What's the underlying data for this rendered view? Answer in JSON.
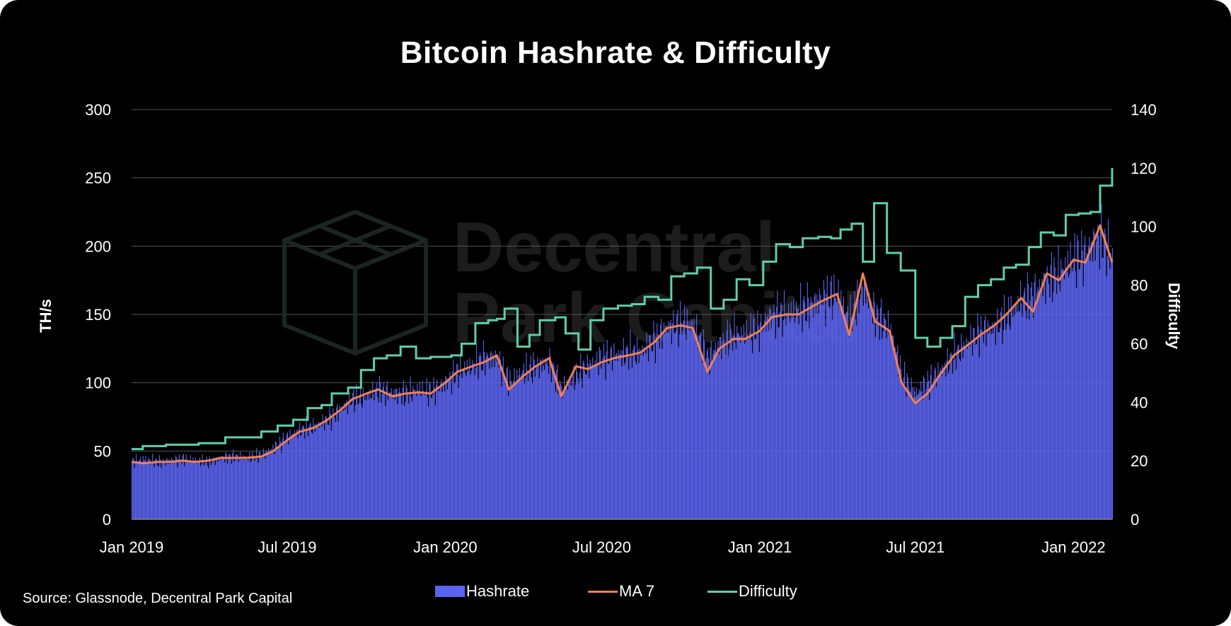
{
  "title": "Bitcoin Hashrate & Difficulty",
  "source": "Source: Glassnode, Decentral Park Capital",
  "watermark": {
    "line1": "Decentral",
    "line2": "Park Capital"
  },
  "colors": {
    "background": "#000000",
    "hashrate": "#5b64f0",
    "ma7": "#f07f55",
    "difficulty": "#5fcfa8",
    "grid": "#555555",
    "text": "#ffffff"
  },
  "legend": [
    {
      "label": "Hashrate",
      "kind": "bar",
      "color": "#5b64f0"
    },
    {
      "label": "MA 7",
      "kind": "line",
      "color": "#f07f55"
    },
    {
      "label": "Difficulty",
      "kind": "line",
      "color": "#5fcfa8"
    }
  ],
  "chart_data": {
    "type": "bar",
    "title": "Bitcoin Hashrate & Difficulty",
    "ylabel": "TH/s",
    "y2label": "Difficulty",
    "ylim": [
      0,
      300
    ],
    "y2lim": [
      0,
      140
    ],
    "yticks": [
      "300",
      "250",
      "200",
      "150",
      "100",
      "50",
      "0"
    ],
    "y2ticks": [
      "140",
      "120",
      "100",
      "80",
      "60",
      "40",
      "20",
      "0"
    ],
    "xlim": [
      "2019-01-01",
      "2022-02-15"
    ],
    "xticks": [
      {
        "date": "2019-01-01",
        "label": "Jan 2019"
      },
      {
        "date": "2019-07-01",
        "label": "Jul 2019"
      },
      {
        "date": "2020-01-01",
        "label": "Jan 2020"
      },
      {
        "date": "2020-07-01",
        "label": "Jul 2020"
      },
      {
        "date": "2021-01-01",
        "label": "Jan 2021"
      },
      {
        "date": "2021-07-01",
        "label": "Jul 2021"
      },
      {
        "date": "2022-01-01",
        "label": "Jan 2022"
      }
    ],
    "grid": true,
    "legend_position": "bottom",
    "series": [
      {
        "name": "Hashrate",
        "type": "bar",
        "axis": "left",
        "points": [
          [
            "2019-01-01",
            42
          ],
          [
            "2019-01-15",
            44
          ],
          [
            "2019-02-01",
            42
          ],
          [
            "2019-02-15",
            43
          ],
          [
            "2019-03-01",
            44
          ],
          [
            "2019-03-15",
            43
          ],
          [
            "2019-04-01",
            42
          ],
          [
            "2019-04-15",
            45
          ],
          [
            "2019-05-01",
            46
          ],
          [
            "2019-05-15",
            45
          ],
          [
            "2019-06-01",
            47
          ],
          [
            "2019-06-15",
            52
          ],
          [
            "2019-07-01",
            60
          ],
          [
            "2019-07-15",
            65
          ],
          [
            "2019-08-01",
            68
          ],
          [
            "2019-08-15",
            72
          ],
          [
            "2019-09-01",
            80
          ],
          [
            "2019-09-15",
            88
          ],
          [
            "2019-10-01",
            90
          ],
          [
            "2019-10-15",
            95
          ],
          [
            "2019-11-01",
            92
          ],
          [
            "2019-11-15",
            92
          ],
          [
            "2019-12-01",
            95
          ],
          [
            "2019-12-15",
            93
          ],
          [
            "2020-01-01",
            100
          ],
          [
            "2020-01-15",
            108
          ],
          [
            "2020-02-01",
            112
          ],
          [
            "2020-02-15",
            118
          ],
          [
            "2020-03-01",
            118
          ],
          [
            "2020-03-15",
            100
          ],
          [
            "2020-04-01",
            108
          ],
          [
            "2020-04-15",
            112
          ],
          [
            "2020-05-01",
            115
          ],
          [
            "2020-05-15",
            95
          ],
          [
            "2020-06-01",
            105
          ],
          [
            "2020-06-15",
            112
          ],
          [
            "2020-07-01",
            118
          ],
          [
            "2020-07-15",
            120
          ],
          [
            "2020-08-01",
            122
          ],
          [
            "2020-08-15",
            122
          ],
          [
            "2020-09-01",
            132
          ],
          [
            "2020-09-15",
            140
          ],
          [
            "2020-10-01",
            143
          ],
          [
            "2020-10-15",
            143
          ],
          [
            "2020-11-01",
            118
          ],
          [
            "2020-11-15",
            128
          ],
          [
            "2020-12-01",
            135
          ],
          [
            "2020-12-15",
            135
          ],
          [
            "2021-01-01",
            140
          ],
          [
            "2021-01-15",
            150
          ],
          [
            "2021-02-01",
            150
          ],
          [
            "2021-02-15",
            153
          ],
          [
            "2021-03-01",
            157
          ],
          [
            "2021-03-15",
            162
          ],
          [
            "2021-04-01",
            165
          ],
          [
            "2021-04-15",
            145
          ],
          [
            "2021-05-01",
            170
          ],
          [
            "2021-05-15",
            150
          ],
          [
            "2021-06-01",
            140
          ],
          [
            "2021-06-15",
            105
          ],
          [
            "2021-07-01",
            92
          ],
          [
            "2021-07-15",
            100
          ],
          [
            "2021-08-01",
            110
          ],
          [
            "2021-08-15",
            120
          ],
          [
            "2021-09-01",
            130
          ],
          [
            "2021-09-15",
            138
          ],
          [
            "2021-10-01",
            140
          ],
          [
            "2021-10-15",
            148
          ],
          [
            "2021-11-01",
            160
          ],
          [
            "2021-11-15",
            165
          ],
          [
            "2021-12-01",
            175
          ],
          [
            "2021-12-15",
            180
          ],
          [
            "2022-01-01",
            190
          ],
          [
            "2022-01-15",
            195
          ],
          [
            "2022-02-01",
            208
          ],
          [
            "2022-02-15",
            190
          ]
        ]
      },
      {
        "name": "MA 7",
        "type": "line",
        "axis": "left",
        "points": [
          [
            "2019-01-01",
            42
          ],
          [
            "2019-01-15",
            41
          ],
          [
            "2019-02-01",
            42
          ],
          [
            "2019-02-15",
            42
          ],
          [
            "2019-03-01",
            43
          ],
          [
            "2019-03-15",
            42
          ],
          [
            "2019-04-01",
            43
          ],
          [
            "2019-04-15",
            45
          ],
          [
            "2019-05-01",
            45
          ],
          [
            "2019-05-15",
            45
          ],
          [
            "2019-06-01",
            46
          ],
          [
            "2019-06-15",
            50
          ],
          [
            "2019-07-01",
            58
          ],
          [
            "2019-07-15",
            64
          ],
          [
            "2019-08-01",
            67
          ],
          [
            "2019-08-15",
            72
          ],
          [
            "2019-09-01",
            80
          ],
          [
            "2019-09-15",
            88
          ],
          [
            "2019-10-01",
            92
          ],
          [
            "2019-10-15",
            95
          ],
          [
            "2019-11-01",
            90
          ],
          [
            "2019-11-15",
            92
          ],
          [
            "2019-12-01",
            93
          ],
          [
            "2019-12-15",
            92
          ],
          [
            "2020-01-01",
            100
          ],
          [
            "2020-01-15",
            108
          ],
          [
            "2020-02-01",
            112
          ],
          [
            "2020-02-15",
            115
          ],
          [
            "2020-03-01",
            120
          ],
          [
            "2020-03-15",
            95
          ],
          [
            "2020-04-01",
            105
          ],
          [
            "2020-04-15",
            112
          ],
          [
            "2020-05-01",
            118
          ],
          [
            "2020-05-15",
            90
          ],
          [
            "2020-06-01",
            112
          ],
          [
            "2020-06-15",
            110
          ],
          [
            "2020-07-01",
            115
          ],
          [
            "2020-07-15",
            118
          ],
          [
            "2020-08-01",
            120
          ],
          [
            "2020-08-15",
            122
          ],
          [
            "2020-09-01",
            130
          ],
          [
            "2020-09-15",
            140
          ],
          [
            "2020-10-01",
            142
          ],
          [
            "2020-10-15",
            140
          ],
          [
            "2020-11-01",
            108
          ],
          [
            "2020-11-15",
            125
          ],
          [
            "2020-12-01",
            132
          ],
          [
            "2020-12-15",
            132
          ],
          [
            "2021-01-01",
            138
          ],
          [
            "2021-01-15",
            148
          ],
          [
            "2021-02-01",
            150
          ],
          [
            "2021-02-15",
            150
          ],
          [
            "2021-03-01",
            155
          ],
          [
            "2021-03-15",
            160
          ],
          [
            "2021-04-01",
            165
          ],
          [
            "2021-04-15",
            135
          ],
          [
            "2021-05-01",
            180
          ],
          [
            "2021-05-15",
            145
          ],
          [
            "2021-06-01",
            138
          ],
          [
            "2021-06-15",
            100
          ],
          [
            "2021-07-01",
            85
          ],
          [
            "2021-07-15",
            92
          ],
          [
            "2021-08-01",
            108
          ],
          [
            "2021-08-15",
            120
          ],
          [
            "2021-09-01",
            128
          ],
          [
            "2021-09-15",
            135
          ],
          [
            "2021-10-01",
            142
          ],
          [
            "2021-10-15",
            150
          ],
          [
            "2021-11-01",
            162
          ],
          [
            "2021-11-15",
            152
          ],
          [
            "2021-12-01",
            180
          ],
          [
            "2021-12-15",
            175
          ],
          [
            "2022-01-01",
            190
          ],
          [
            "2022-01-15",
            188
          ],
          [
            "2022-02-01",
            215
          ],
          [
            "2022-02-15",
            188
          ]
        ]
      },
      {
        "name": "Difficulty",
        "type": "step",
        "axis": "right",
        "points": [
          [
            "2019-01-01",
            24
          ],
          [
            "2019-01-14",
            25
          ],
          [
            "2019-02-10",
            25.5
          ],
          [
            "2019-03-20",
            26
          ],
          [
            "2019-04-20",
            28
          ],
          [
            "2019-06-01",
            30
          ],
          [
            "2019-06-20",
            32
          ],
          [
            "2019-07-08",
            34
          ],
          [
            "2019-07-25",
            38
          ],
          [
            "2019-08-10",
            39
          ],
          [
            "2019-08-22",
            43
          ],
          [
            "2019-09-10",
            45
          ],
          [
            "2019-09-25",
            51
          ],
          [
            "2019-10-10",
            55
          ],
          [
            "2019-10-25",
            56
          ],
          [
            "2019-11-10",
            59
          ],
          [
            "2019-11-28",
            55
          ],
          [
            "2019-12-15",
            55.5
          ],
          [
            "2020-01-08",
            56
          ],
          [
            "2020-01-20",
            60
          ],
          [
            "2020-02-05",
            67
          ],
          [
            "2020-02-20",
            68
          ],
          [
            "2020-03-01",
            68.5
          ],
          [
            "2020-03-10",
            72
          ],
          [
            "2020-03-25",
            59
          ],
          [
            "2020-04-08",
            63
          ],
          [
            "2020-04-20",
            68
          ],
          [
            "2020-05-08",
            69
          ],
          [
            "2020-05-20",
            63.5
          ],
          [
            "2020-06-04",
            58
          ],
          [
            "2020-06-18",
            68
          ],
          [
            "2020-07-03",
            72
          ],
          [
            "2020-07-20",
            73
          ],
          [
            "2020-08-05",
            73.5
          ],
          [
            "2020-08-20",
            76
          ],
          [
            "2020-09-05",
            75
          ],
          [
            "2020-09-20",
            83
          ],
          [
            "2020-10-05",
            84
          ],
          [
            "2020-10-20",
            86
          ],
          [
            "2020-11-05",
            72
          ],
          [
            "2020-11-20",
            75
          ],
          [
            "2020-12-05",
            82
          ],
          [
            "2020-12-20",
            80
          ],
          [
            "2021-01-05",
            88
          ],
          [
            "2021-01-20",
            94
          ],
          [
            "2021-02-05",
            93
          ],
          [
            "2021-02-20",
            96
          ],
          [
            "2021-03-10",
            96.5
          ],
          [
            "2021-03-25",
            96
          ],
          [
            "2021-04-05",
            99
          ],
          [
            "2021-04-18",
            101
          ],
          [
            "2021-05-01",
            88
          ],
          [
            "2021-05-14",
            108
          ],
          [
            "2021-05-29",
            91
          ],
          [
            "2021-06-14",
            85
          ],
          [
            "2021-07-01",
            62
          ],
          [
            "2021-07-15",
            59
          ],
          [
            "2021-07-30",
            62
          ],
          [
            "2021-08-13",
            66
          ],
          [
            "2021-08-28",
            76
          ],
          [
            "2021-09-12",
            80
          ],
          [
            "2021-09-27",
            82
          ],
          [
            "2021-10-12",
            86
          ],
          [
            "2021-10-26",
            87
          ],
          [
            "2021-11-10",
            93
          ],
          [
            "2021-11-24",
            98
          ],
          [
            "2021-12-09",
            97
          ],
          [
            "2021-12-23",
            104
          ],
          [
            "2022-01-07",
            104.5
          ],
          [
            "2022-01-21",
            105
          ],
          [
            "2022-02-01",
            114
          ],
          [
            "2022-02-15",
            120
          ]
        ]
      }
    ]
  }
}
